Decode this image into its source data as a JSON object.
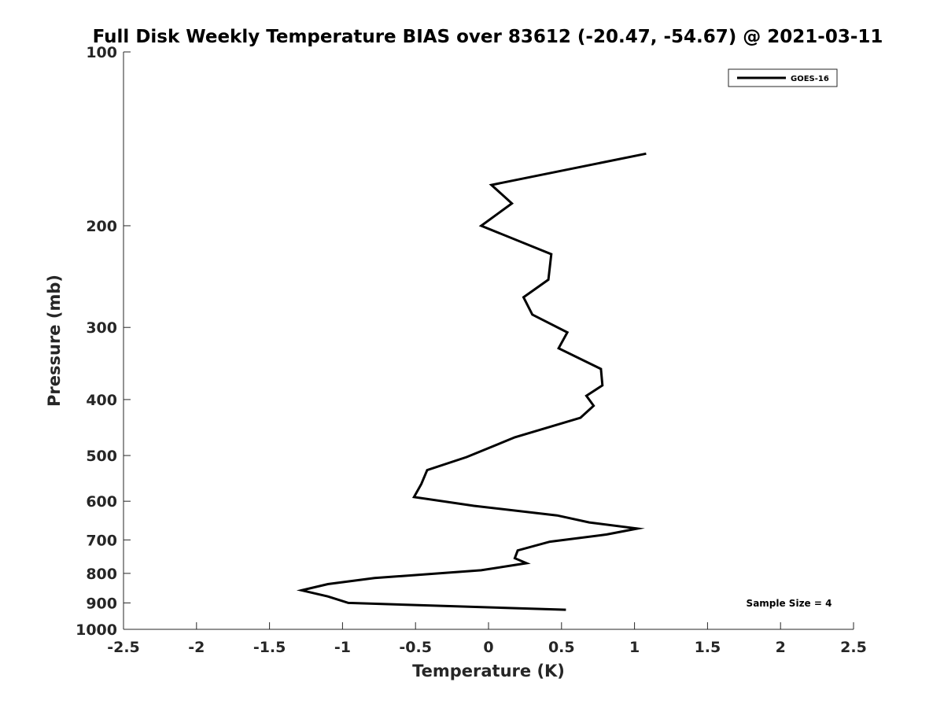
{
  "chart_data": {
    "type": "line",
    "title": "Full Disk Weekly Temperature BIAS over 83612 (-20.47, -54.67) @ 2021-03-11",
    "xlabel": "Temperature (K)",
    "ylabel": "Pressure (mb)",
    "xlim": [
      -2.5,
      2.5
    ],
    "ylim": [
      100,
      1000
    ],
    "y_scale": "log",
    "y_reversed": true,
    "x_ticks": [
      "-2.5",
      "-2",
      "-1.5",
      "-1",
      "-0.5",
      "0",
      "0.5",
      "1",
      "1.5",
      "2",
      "2.5"
    ],
    "y_ticks": [
      "100",
      "200",
      "300",
      "400",
      "500",
      "600",
      "700",
      "800",
      "900",
      "1000"
    ],
    "grid": false,
    "legend_position": "top-right",
    "annotation": "Sample Size = 4",
    "series": [
      {
        "name": "GOES-16",
        "color": "#000000",
        "points": [
          [
            1.08,
            150
          ],
          [
            0.02,
            170
          ],
          [
            0.16,
            183
          ],
          [
            -0.05,
            200
          ],
          [
            0.43,
            224
          ],
          [
            0.41,
            248
          ],
          [
            0.24,
            266
          ],
          [
            0.3,
            285
          ],
          [
            0.54,
            306
          ],
          [
            0.48,
            326
          ],
          [
            0.77,
            354
          ],
          [
            0.78,
            378
          ],
          [
            0.67,
            394
          ],
          [
            0.72,
            410
          ],
          [
            0.63,
            430
          ],
          [
            0.18,
            465
          ],
          [
            -0.15,
            503
          ],
          [
            -0.42,
            530
          ],
          [
            -0.46,
            560
          ],
          [
            -0.51,
            590
          ],
          [
            -0.1,
            611
          ],
          [
            0.47,
            635
          ],
          [
            0.69,
            653
          ],
          [
            1.02,
            669
          ],
          [
            0.81,
            685
          ],
          [
            0.42,
            705
          ],
          [
            0.2,
            730
          ],
          [
            0.18,
            753
          ],
          [
            0.26,
            768
          ],
          [
            -0.05,
            790
          ],
          [
            -0.78,
            815
          ],
          [
            -1.1,
            835
          ],
          [
            -1.28,
            856
          ],
          [
            -1.1,
            877
          ],
          [
            -0.96,
            900
          ],
          [
            0.53,
            925
          ]
        ]
      }
    ]
  }
}
